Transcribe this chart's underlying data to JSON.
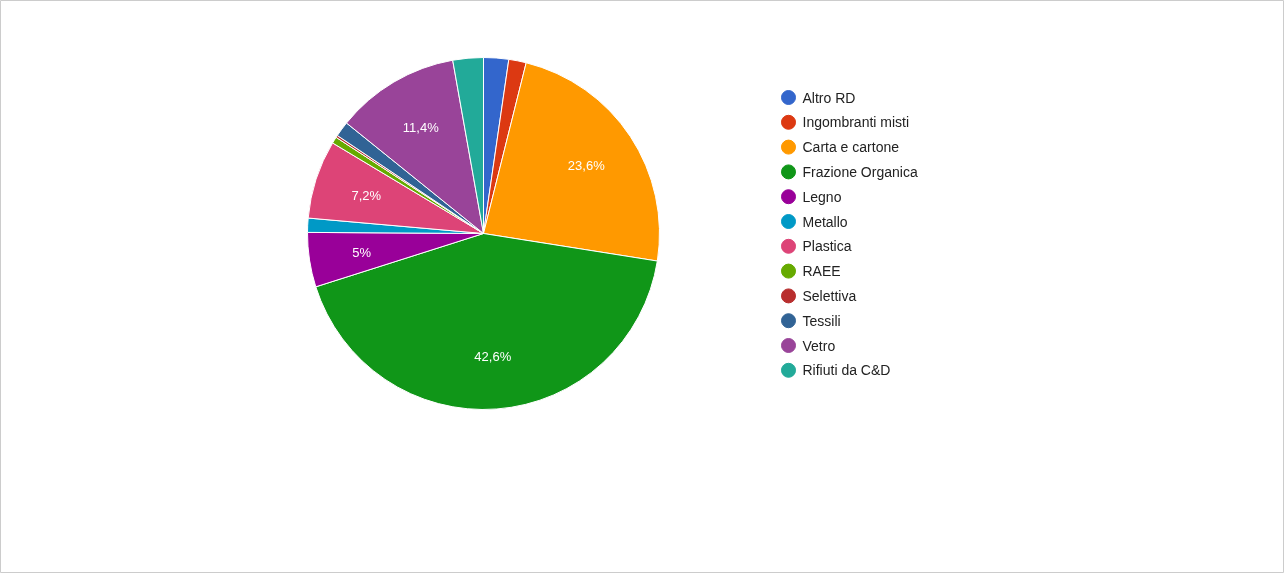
{
  "chart_data": {
    "type": "pie",
    "categories": [
      "Altro RD",
      "Ingombranti misti",
      "Carta e cartone",
      "Frazione Organica",
      "Legno",
      "Metallo",
      "Plastica",
      "RAEE",
      "Selettiva",
      "Tessili",
      "Vetro",
      "Rifiuti da C&D"
    ],
    "values": [
      2.3,
      1.6,
      23.6,
      42.6,
      5,
      1.3,
      7.2,
      0.6,
      0.2,
      1.4,
      11.4,
      2.8
    ],
    "colors": [
      "#3366cc",
      "#dc3912",
      "#ff9900",
      "#109618",
      "#990099",
      "#0099c6",
      "#dd4477",
      "#66aa00",
      "#b82e2e",
      "#316395",
      "#994499",
      "#22aa99"
    ],
    "value_labels": [
      null,
      null,
      "23,6%",
      "42,6%",
      "5%",
      null,
      "7,2%",
      null,
      null,
      null,
      "11,4%",
      null
    ],
    "legend": "right"
  }
}
